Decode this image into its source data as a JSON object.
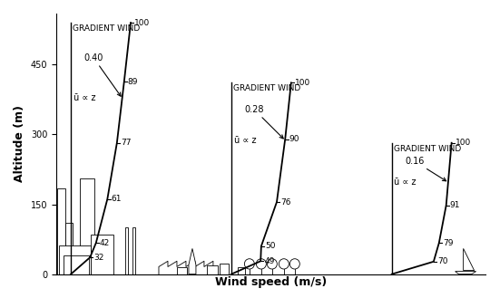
{
  "chart_data": {
    "type": "line",
    "xlabel": "Wind speed (m/s)",
    "ylabel": "Altitude (m)",
    "ylim": [
      0,
      560
    ],
    "yticks": [
      0,
      150,
      300,
      450
    ],
    "tick_labels": "y",
    "color": "#000000",
    "profiles": [
      {
        "label": "GRADIENT WIND",
        "law": "ū ∝ z",
        "exponent": "0.40",
        "altitude": [
          0,
          36,
          67,
          161,
          282,
          413,
          540
        ],
        "percent": [
          0,
          32,
          42,
          61,
          77,
          89,
          100
        ]
      },
      {
        "label": "GRADIENT WIND",
        "law": "ū ∝ z",
        "exponent": "0.28",
        "altitude": [
          0,
          28,
          60,
          155,
          290,
          411
        ],
        "percent": [
          0,
          49,
          50,
          76,
          90,
          100
        ]
      },
      {
        "label": "GRADIENT WIND",
        "law": "ū ∝ z",
        "exponent": "0.16",
        "altitude": [
          0,
          27,
          67,
          148,
          282
        ],
        "percent": [
          0,
          70,
          79,
          91,
          100
        ]
      }
    ]
  }
}
